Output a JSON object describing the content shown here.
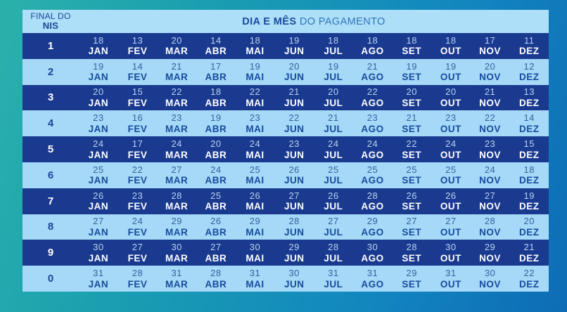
{
  "header": {
    "nis_line1": "FINAL DO",
    "nis_line2": "NIS",
    "title_bold": "DIA E MÊS",
    "title_regular": " DO PAGAMENTO"
  },
  "months": [
    "JAN",
    "FEV",
    "MAR",
    "ABR",
    "MAI",
    "JUN",
    "JUL",
    "AGO",
    "SET",
    "OUT",
    "NOV",
    "DEZ"
  ],
  "rows": [
    {
      "nis": "1",
      "days": [
        18,
        13,
        20,
        14,
        18,
        19,
        18,
        18,
        18,
        18,
        17,
        11
      ]
    },
    {
      "nis": "2",
      "days": [
        19,
        14,
        21,
        17,
        19,
        20,
        19,
        21,
        19,
        19,
        20,
        12
      ]
    },
    {
      "nis": "3",
      "days": [
        20,
        15,
        22,
        18,
        22,
        21,
        20,
        22,
        20,
        20,
        21,
        13
      ]
    },
    {
      "nis": "4",
      "days": [
        23,
        16,
        23,
        19,
        23,
        22,
        21,
        23,
        21,
        23,
        22,
        14
      ]
    },
    {
      "nis": "5",
      "days": [
        24,
        17,
        24,
        20,
        24,
        23,
        24,
        24,
        22,
        24,
        23,
        15
      ]
    },
    {
      "nis": "6",
      "days": [
        25,
        22,
        27,
        24,
        25,
        26,
        25,
        25,
        25,
        25,
        24,
        18
      ]
    },
    {
      "nis": "7",
      "days": [
        26,
        23,
        28,
        25,
        26,
        27,
        26,
        28,
        26,
        26,
        27,
        19
      ]
    },
    {
      "nis": "8",
      "days": [
        27,
        24,
        29,
        26,
        29,
        28,
        27,
        29,
        27,
        27,
        28,
        20
      ]
    },
    {
      "nis": "9",
      "days": [
        30,
        27,
        30,
        27,
        30,
        29,
        28,
        30,
        28,
        30,
        29,
        21
      ]
    },
    {
      "nis": "0",
      "days": [
        31,
        28,
        31,
        28,
        31,
        30,
        31,
        31,
        29,
        31,
        30,
        22
      ]
    }
  ],
  "colors": {
    "background_teal": "#2bb1ab",
    "background_blue": "#0d6cb5",
    "header_bg": "#aedff8",
    "dark_row_bg": "#1a3a90",
    "light_row_bg": "#a5d9f7",
    "navy_text": "#174a9e",
    "white_text": "#ffffff"
  }
}
